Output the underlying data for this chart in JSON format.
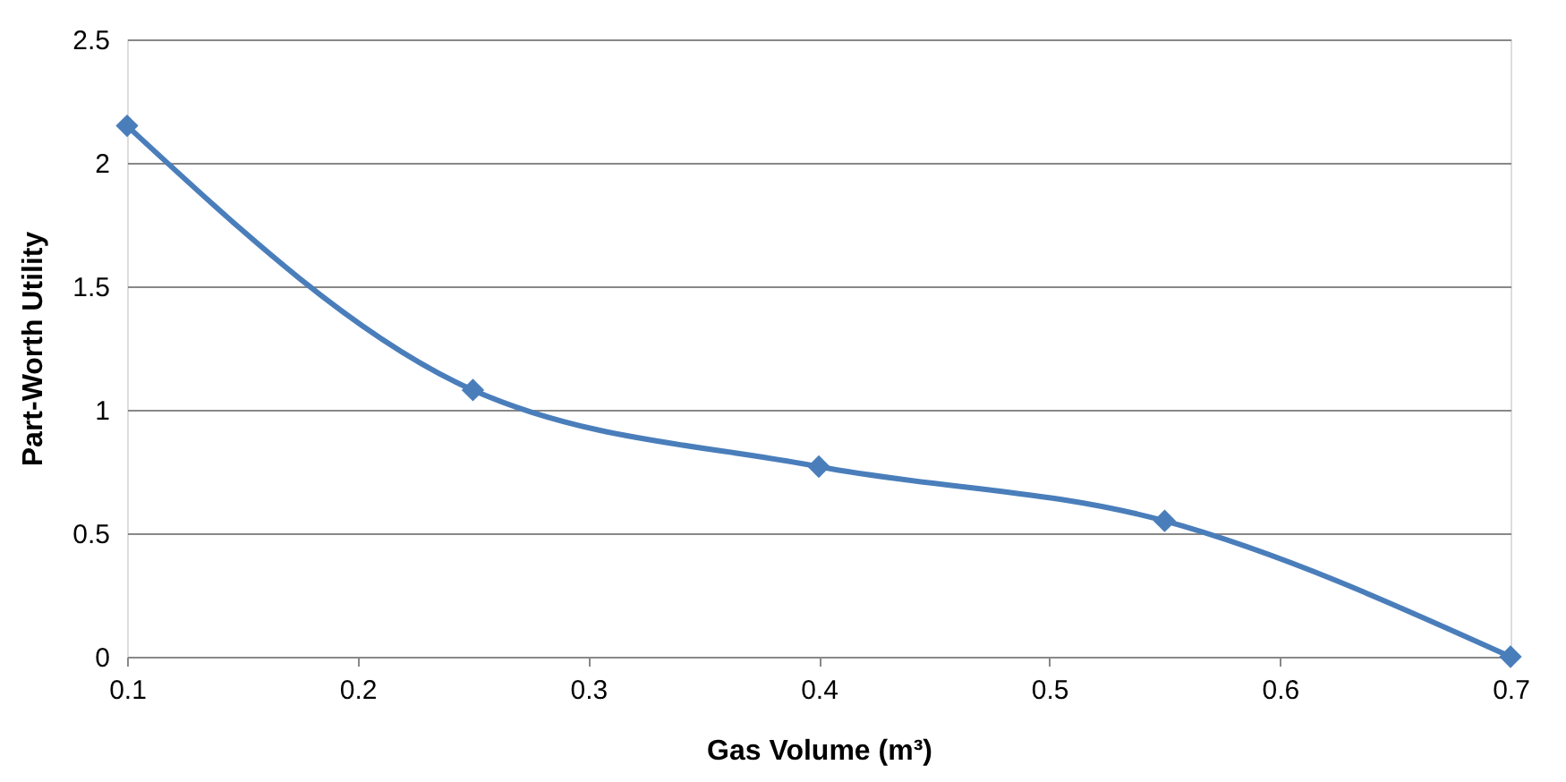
{
  "chart_data": {
    "type": "line",
    "xlabel": "Gas Volume (m³)",
    "ylabel": "Part-Worth Utility",
    "x": [
      0.1,
      0.25,
      0.4,
      0.55,
      0.7
    ],
    "series": [
      {
        "color": "#4a7ebb",
        "values": [
          2.15,
          1.08,
          0.77,
          0.55,
          0.0
        ]
      }
    ],
    "xlim": [
      0.1,
      0.7
    ],
    "xticks": [
      0.1,
      0.2,
      0.3,
      0.4,
      0.5,
      0.6,
      0.7
    ],
    "ylim": [
      0,
      2.5
    ],
    "yticks": [
      0,
      0.5,
      1,
      1.5,
      2,
      2.5
    ],
    "grid": "y",
    "marker": "diamond",
    "line_style": "solid"
  }
}
